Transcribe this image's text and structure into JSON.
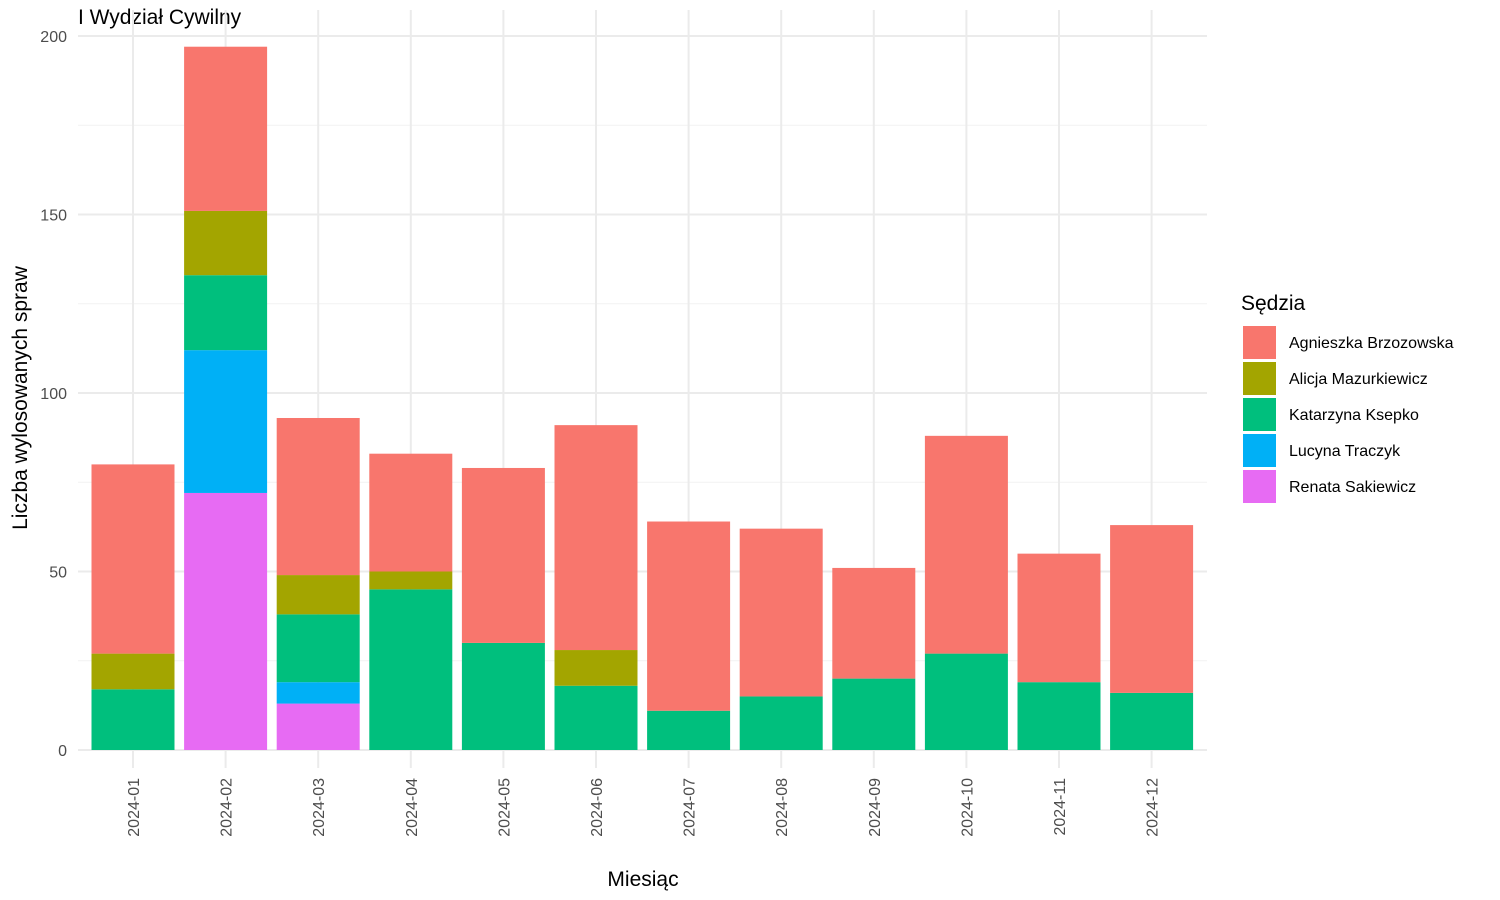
{
  "chart_data": {
    "type": "bar",
    "stacked": true,
    "title": "I Wydział Cywilny",
    "xlabel": "Miesiąc",
    "ylabel": "Liczba wylosowanych spraw",
    "ylim": [
      0,
      200
    ],
    "yticks": [
      0,
      50,
      100,
      150,
      200
    ],
    "grid": true,
    "legend_title": "Sędzia",
    "legend_position": "right",
    "categories": [
      "2024-01",
      "2024-02",
      "2024-03",
      "2024-04",
      "2024-05",
      "2024-06",
      "2024-07",
      "2024-08",
      "2024-09",
      "2024-10",
      "2024-11",
      "2024-12"
    ],
    "stack_order_bottom_to_top": [
      "Renata Sakiewicz",
      "Lucyna Traczyk",
      "Katarzyna Ksepko",
      "Alicja Mazurkiewicz",
      "Agnieszka Brzozowska"
    ],
    "series": [
      {
        "name": "Agnieszka Brzozowska",
        "color": "#F8766D",
        "values": [
          53,
          46,
          44,
          33,
          49,
          63,
          53,
          47,
          31,
          61,
          36,
          47
        ]
      },
      {
        "name": "Alicja Mazurkiewicz",
        "color": "#A3A500",
        "values": [
          10,
          18,
          11,
          5,
          0,
          10,
          0,
          0,
          0,
          0,
          0,
          0
        ]
      },
      {
        "name": "Katarzyna Ksepko",
        "color": "#00BF7D",
        "values": [
          17,
          21,
          19,
          45,
          30,
          18,
          11,
          15,
          20,
          27,
          19,
          16
        ]
      },
      {
        "name": "Lucyna Traczyk",
        "color": "#00B0F6",
        "values": [
          0,
          40,
          6,
          0,
          0,
          0,
          0,
          0,
          0,
          0,
          0,
          0
        ]
      },
      {
        "name": "Renata Sakiewicz",
        "color": "#E76BF3",
        "values": [
          0,
          72,
          13,
          0,
          0,
          0,
          0,
          0,
          0,
          0,
          0,
          0
        ]
      }
    ]
  }
}
